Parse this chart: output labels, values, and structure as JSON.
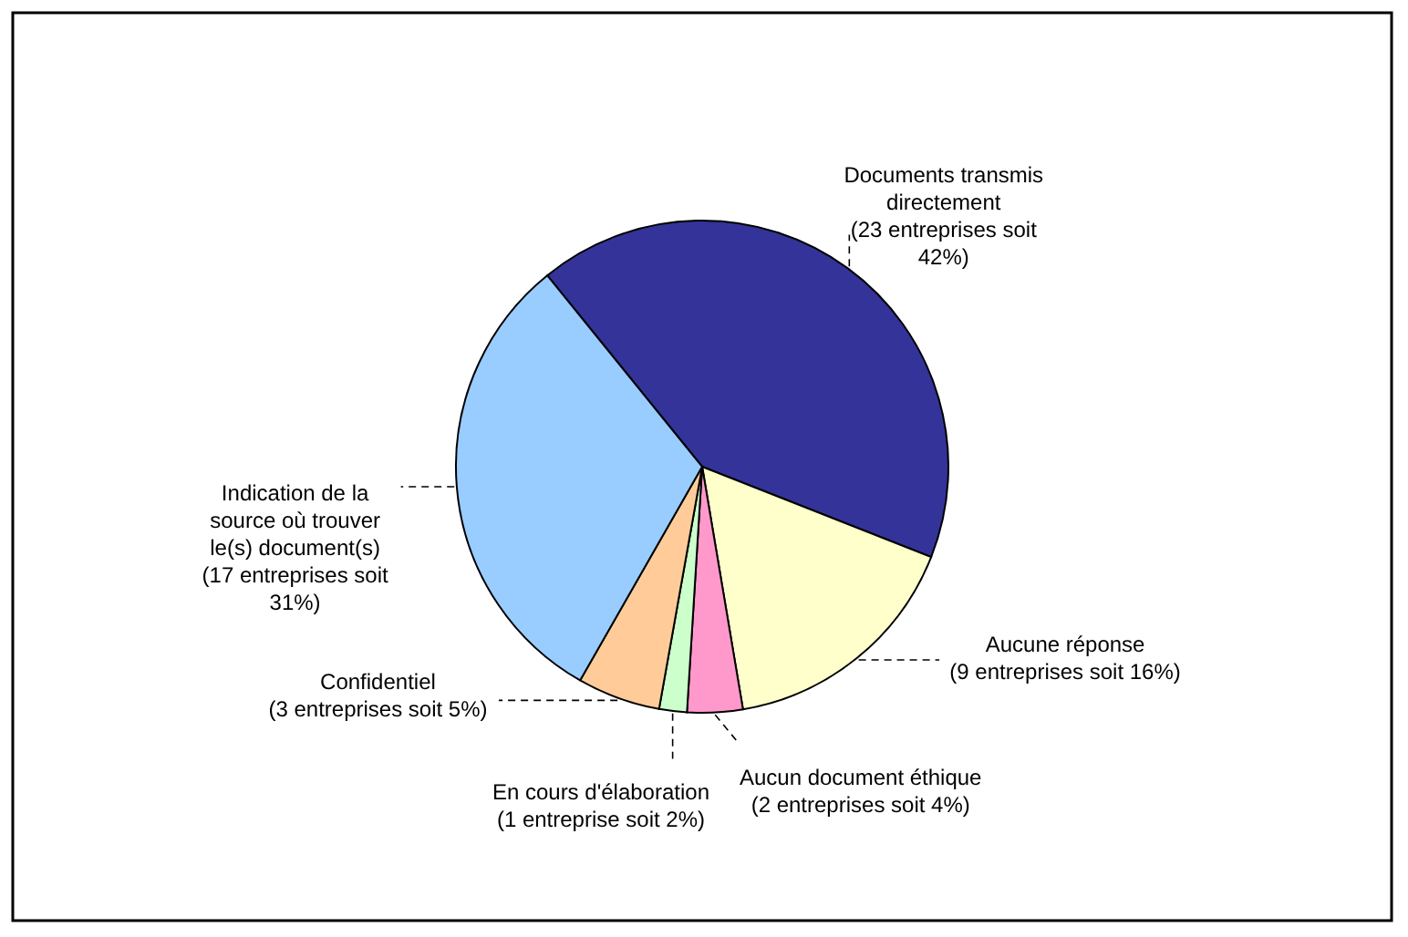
{
  "chart_data": {
    "type": "pie",
    "categories": [
      "Documents transmis directement",
      "Aucune réponse",
      "Aucun document éthique",
      "En cours d'élaboration",
      "Confidentiel",
      "Indication de la source où trouver le(s) document(s)"
    ],
    "values": [
      23,
      9,
      2,
      1,
      3,
      17
    ],
    "value_labels": [
      "(23 entreprises soit 42%)",
      "(9 entreprises soit 16%)",
      "(2 entreprises soit 4%)",
      "(1 entreprise soit 2%)",
      "(3 entreprises soit 5%)",
      "(17 entreprises soit 31%)"
    ],
    "colors": [
      "#333399",
      "#ffffcc",
      "#ff99cc",
      "#ccffcc",
      "#ffcc99",
      "#99ccff"
    ],
    "legend": false
  }
}
